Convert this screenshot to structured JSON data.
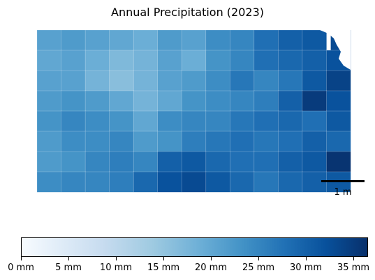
{
  "title": "Annual Precipitation (2023)",
  "scale_bar": {
    "label": "1 m"
  },
  "colorbar": {
    "colormap": "Blues",
    "min": 0,
    "max": 36.5,
    "ticks": [
      0,
      5,
      10,
      15,
      20,
      25,
      30,
      35
    ],
    "tick_labels": [
      "0 mm",
      "5 mm",
      "10 mm",
      "15 mm",
      "20 mm",
      "25 mm",
      "30 mm",
      "35 mm"
    ]
  },
  "map": {
    "region": "Kansas counties",
    "precipitation_mm_by_county_grid": [
      [
        21,
        22,
        21,
        20,
        19,
        22,
        21,
        24,
        25,
        28,
        30,
        31,
        33
      ],
      [
        20,
        21,
        19,
        17,
        18,
        21,
        19,
        23,
        25,
        28,
        29,
        30,
        32
      ],
      [
        21,
        21,
        18,
        16,
        18,
        21,
        22,
        24,
        27,
        25,
        27,
        31,
        34
      ],
      [
        22,
        23,
        22,
        20,
        18,
        20,
        23,
        24,
        25,
        26,
        30,
        35,
        32
      ],
      [
        23,
        25,
        24,
        23,
        20,
        24,
        25,
        25,
        27,
        28,
        29,
        28,
        31
      ],
      [
        22,
        24,
        24,
        25,
        22,
        23,
        26,
        27,
        28,
        27,
        28,
        30,
        29
      ],
      [
        22,
        23,
        25,
        26,
        25,
        30,
        31,
        29,
        28,
        28,
        30,
        31,
        36
      ],
      [
        24,
        25,
        25,
        26,
        29,
        32,
        33,
        31,
        29,
        27,
        29,
        30,
        31
      ]
    ]
  }
}
